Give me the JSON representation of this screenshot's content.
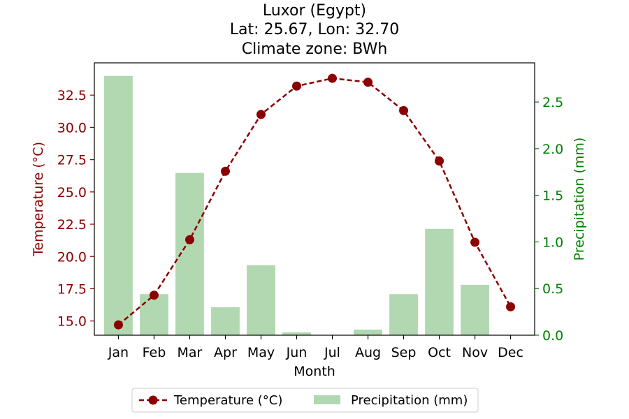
{
  "colors": {
    "temperature": "#8b0000",
    "precipitation_bar": "#b2d8b2",
    "precipitation_axis": "#008000",
    "axis": "#000000"
  },
  "chart_data": {
    "type": "bar",
    "title_lines": [
      "Luxor (Egypt)",
      "Lat: 25.67, Lon: 32.70",
      "Climate zone: BWh"
    ],
    "xlabel": "Month",
    "ylabel_left": "Temperature (°C)",
    "ylabel_right": "Precipitation (mm)",
    "categories": [
      "Jan",
      "Feb",
      "Mar",
      "Apr",
      "May",
      "Jun",
      "Jul",
      "Aug",
      "Sep",
      "Oct",
      "Nov",
      "Dec"
    ],
    "series": [
      {
        "name": "Temperature (°C)",
        "type": "line",
        "axis": "left",
        "style": "dashed with circle markers",
        "values": [
          14.7,
          17.0,
          21.3,
          26.6,
          31.0,
          33.2,
          33.8,
          33.5,
          31.3,
          27.4,
          21.1,
          16.1
        ]
      },
      {
        "name": "Precipitation (mm)",
        "type": "bar",
        "axis": "right",
        "values": [
          2.78,
          0.44,
          1.74,
          0.3,
          0.75,
          0.03,
          0.0,
          0.06,
          0.44,
          1.14,
          0.54,
          0.0
        ]
      }
    ],
    "ylim_left": [
      13.9,
      35.0
    ],
    "ylim_right": [
      0.0,
      2.92
    ],
    "yticks_left": [
      "15.0",
      "17.5",
      "20.0",
      "22.5",
      "25.0",
      "27.5",
      "30.0",
      "32.5"
    ],
    "yticks_right": [
      "0.0",
      "0.5",
      "1.0",
      "1.5",
      "2.0",
      "2.5"
    ],
    "grid": false,
    "legend": {
      "placement": "bottom-center",
      "entries": [
        "Temperature (°C)",
        "Precipitation (mm)"
      ]
    }
  }
}
